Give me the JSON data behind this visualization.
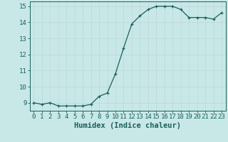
{
  "x": [
    0,
    1,
    2,
    3,
    4,
    5,
    6,
    7,
    8,
    9,
    10,
    11,
    12,
    13,
    14,
    15,
    16,
    17,
    18,
    19,
    20,
    21,
    22,
    23
  ],
  "y": [
    9.0,
    8.9,
    9.0,
    8.8,
    8.8,
    8.8,
    8.8,
    8.9,
    9.4,
    9.6,
    10.8,
    12.4,
    13.9,
    14.4,
    14.8,
    15.0,
    15.0,
    15.0,
    14.8,
    14.3,
    14.3,
    14.3,
    14.2,
    14.6
  ],
  "line_color": "#1a5f5a",
  "marker": "+",
  "background_color": "#c8e8e8",
  "grid_color": "#c0d8d8",
  "xlabel": "Humidex (Indice chaleur)",
  "xlim": [
    -0.5,
    23.5
  ],
  "ylim": [
    8.5,
    15.3
  ],
  "yticks": [
    9,
    10,
    11,
    12,
    13,
    14,
    15
  ],
  "xticks": [
    0,
    1,
    2,
    3,
    4,
    5,
    6,
    7,
    8,
    9,
    10,
    11,
    12,
    13,
    14,
    15,
    16,
    17,
    18,
    19,
    20,
    21,
    22,
    23
  ],
  "tick_color": "#1a5f5a",
  "label_fontsize": 6.5,
  "xlabel_fontsize": 7.5,
  "axis_color": "#1a5f5a",
  "linewidth": 0.9,
  "markersize": 3.5,
  "markeredgewidth": 0.9
}
